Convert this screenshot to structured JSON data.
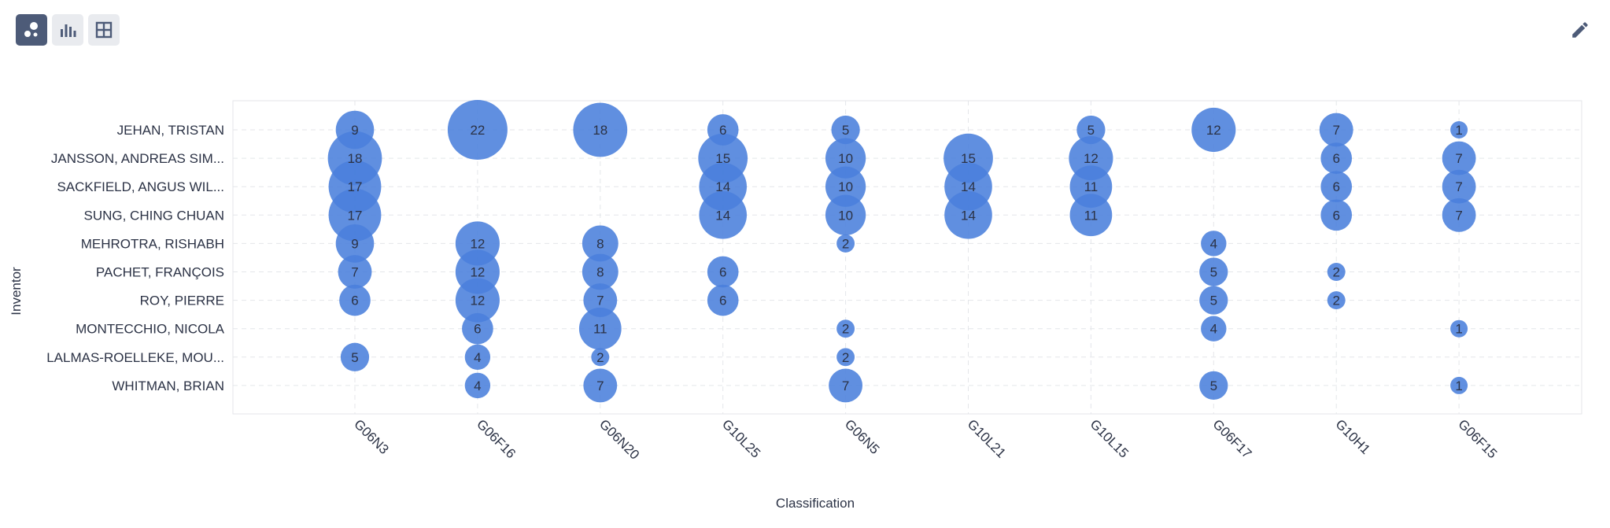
{
  "toolbar": {
    "buttons": [
      {
        "name": "bubble-chart",
        "icon": "bubble-icon",
        "active": true
      },
      {
        "name": "bar-chart",
        "icon": "bar-chart-icon",
        "active": false
      },
      {
        "name": "table",
        "icon": "table-icon",
        "active": false
      }
    ],
    "edit_icon": "pencil-icon"
  },
  "chart_data": {
    "type": "scatter",
    "xlabel": "Classification",
    "ylabel": "Inventor",
    "x_categories": [
      "G06N3",
      "G06F16",
      "G06N20",
      "G10L25",
      "G06N5",
      "G10L21",
      "G10L15",
      "G06F17",
      "G10H1",
      "G06F15"
    ],
    "y_categories": [
      "JEHAN, TRISTAN",
      "JANSSON, ANDREAS SIM...",
      "SACKFIELD, ANGUS WIL...",
      "SUNG, CHING CHUAN",
      "MEHROTRA, RISHABH",
      "PACHET, FRANÇOIS",
      "ROY, PIERRE",
      "MONTECCHIO, NICOLA",
      "LALMAS-ROELLEKE, MOU...",
      "WHITMAN, BRIAN"
    ],
    "points": [
      {
        "x": "G06N3",
        "y": "JEHAN, TRISTAN",
        "value": 9
      },
      {
        "x": "G06F16",
        "y": "JEHAN, TRISTAN",
        "value": 22
      },
      {
        "x": "G06N20",
        "y": "JEHAN, TRISTAN",
        "value": 18
      },
      {
        "x": "G10L25",
        "y": "JEHAN, TRISTAN",
        "value": 6
      },
      {
        "x": "G06N5",
        "y": "JEHAN, TRISTAN",
        "value": 5
      },
      {
        "x": "G10L15",
        "y": "JEHAN, TRISTAN",
        "value": 5
      },
      {
        "x": "G06F17",
        "y": "JEHAN, TRISTAN",
        "value": 12
      },
      {
        "x": "G10H1",
        "y": "JEHAN, TRISTAN",
        "value": 7
      },
      {
        "x": "G06F15",
        "y": "JEHAN, TRISTAN",
        "value": 1
      },
      {
        "x": "G06N3",
        "y": "JANSSON, ANDREAS SIM...",
        "value": 18
      },
      {
        "x": "G10L25",
        "y": "JANSSON, ANDREAS SIM...",
        "value": 15
      },
      {
        "x": "G06N5",
        "y": "JANSSON, ANDREAS SIM...",
        "value": 10
      },
      {
        "x": "G10L21",
        "y": "JANSSON, ANDREAS SIM...",
        "value": 15
      },
      {
        "x": "G10L15",
        "y": "JANSSON, ANDREAS SIM...",
        "value": 12
      },
      {
        "x": "G10H1",
        "y": "JANSSON, ANDREAS SIM...",
        "value": 6
      },
      {
        "x": "G06F15",
        "y": "JANSSON, ANDREAS SIM...",
        "value": 7
      },
      {
        "x": "G06N3",
        "y": "SACKFIELD, ANGUS WIL...",
        "value": 17
      },
      {
        "x": "G10L25",
        "y": "SACKFIELD, ANGUS WIL...",
        "value": 14
      },
      {
        "x": "G06N5",
        "y": "SACKFIELD, ANGUS WIL...",
        "value": 10
      },
      {
        "x": "G10L21",
        "y": "SACKFIELD, ANGUS WIL...",
        "value": 14
      },
      {
        "x": "G10L15",
        "y": "SACKFIELD, ANGUS WIL...",
        "value": 11
      },
      {
        "x": "G10H1",
        "y": "SACKFIELD, ANGUS WIL...",
        "value": 6
      },
      {
        "x": "G06F15",
        "y": "SACKFIELD, ANGUS WIL...",
        "value": 7
      },
      {
        "x": "G06N3",
        "y": "SUNG, CHING CHUAN",
        "value": 17
      },
      {
        "x": "G10L25",
        "y": "SUNG, CHING CHUAN",
        "value": 14
      },
      {
        "x": "G06N5",
        "y": "SUNG, CHING CHUAN",
        "value": 10
      },
      {
        "x": "G10L21",
        "y": "SUNG, CHING CHUAN",
        "value": 14
      },
      {
        "x": "G10L15",
        "y": "SUNG, CHING CHUAN",
        "value": 11
      },
      {
        "x": "G10H1",
        "y": "SUNG, CHING CHUAN",
        "value": 6
      },
      {
        "x": "G06F15",
        "y": "SUNG, CHING CHUAN",
        "value": 7
      },
      {
        "x": "G06N3",
        "y": "MEHROTRA, RISHABH",
        "value": 9
      },
      {
        "x": "G06F16",
        "y": "MEHROTRA, RISHABH",
        "value": 12
      },
      {
        "x": "G06N20",
        "y": "MEHROTRA, RISHABH",
        "value": 8
      },
      {
        "x": "G06N5",
        "y": "MEHROTRA, RISHABH",
        "value": 2
      },
      {
        "x": "G06F17",
        "y": "MEHROTRA, RISHABH",
        "value": 4
      },
      {
        "x": "G06N3",
        "y": "PACHET, FRANÇOIS",
        "value": 7
      },
      {
        "x": "G06F16",
        "y": "PACHET, FRANÇOIS",
        "value": 12
      },
      {
        "x": "G06N20",
        "y": "PACHET, FRANÇOIS",
        "value": 8
      },
      {
        "x": "G10L25",
        "y": "PACHET, FRANÇOIS",
        "value": 6
      },
      {
        "x": "G06F17",
        "y": "PACHET, FRANÇOIS",
        "value": 5
      },
      {
        "x": "G10H1",
        "y": "PACHET, FRANÇOIS",
        "value": 2
      },
      {
        "x": "G06N3",
        "y": "ROY, PIERRE",
        "value": 6
      },
      {
        "x": "G06F16",
        "y": "ROY, PIERRE",
        "value": 12
      },
      {
        "x": "G06N20",
        "y": "ROY, PIERRE",
        "value": 7
      },
      {
        "x": "G10L25",
        "y": "ROY, PIERRE",
        "value": 6
      },
      {
        "x": "G06F17",
        "y": "ROY, PIERRE",
        "value": 5
      },
      {
        "x": "G10H1",
        "y": "ROY, PIERRE",
        "value": 2
      },
      {
        "x": "G06F16",
        "y": "MONTECCHIO, NICOLA",
        "value": 6
      },
      {
        "x": "G06N20",
        "y": "MONTECCHIO, NICOLA",
        "value": 11
      },
      {
        "x": "G06N5",
        "y": "MONTECCHIO, NICOLA",
        "value": 2
      },
      {
        "x": "G06F17",
        "y": "MONTECCHIO, NICOLA",
        "value": 4
      },
      {
        "x": "G06F15",
        "y": "MONTECCHIO, NICOLA",
        "value": 1
      },
      {
        "x": "G06N3",
        "y": "LALMAS-ROELLEKE, MOU...",
        "value": 5
      },
      {
        "x": "G06F16",
        "y": "LALMAS-ROELLEKE, MOU...",
        "value": 4
      },
      {
        "x": "G06N20",
        "y": "LALMAS-ROELLEKE, MOU...",
        "value": 2
      },
      {
        "x": "G06N5",
        "y": "LALMAS-ROELLEKE, MOU...",
        "value": 2
      },
      {
        "x": "G06F16",
        "y": "WHITMAN, BRIAN",
        "value": 4
      },
      {
        "x": "G06N20",
        "y": "WHITMAN, BRIAN",
        "value": 7
      },
      {
        "x": "G06N5",
        "y": "WHITMAN, BRIAN",
        "value": 7
      },
      {
        "x": "G06F17",
        "y": "WHITMAN, BRIAN",
        "value": 5
      },
      {
        "x": "G06F15",
        "y": "WHITMAN, BRIAN",
        "value": 1
      }
    ],
    "grid": true,
    "legend": "none",
    "colors": {
      "bubble": "#4a7fdc",
      "label": "#2b3245",
      "grid": "#e4e6ea"
    }
  }
}
